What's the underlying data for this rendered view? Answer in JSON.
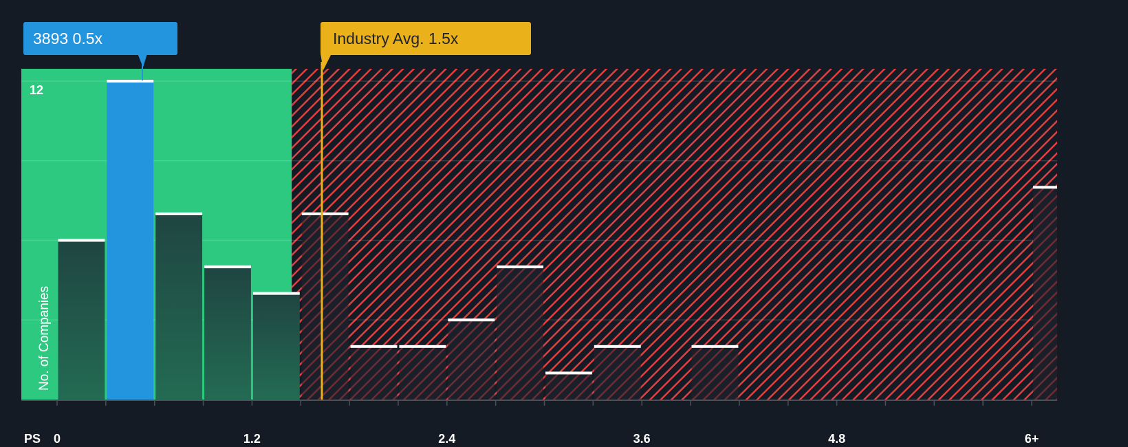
{
  "callouts": {
    "company": "3893 0.5x",
    "industry": "Industry Avg. 1.5x"
  },
  "axis": {
    "x_prefix": "PS",
    "y_title": "No. of Companies",
    "y_top_tick": "12"
  },
  "colors": {
    "background": "#151b24",
    "fair_zone": "#2ec981",
    "overvalued_stripe": "#e0403f",
    "company_bar": "#2394de",
    "industry_line": "#ebb11a",
    "bar_fill_green_zone": "#1f4a40",
    "bar_top": "#ffffff"
  },
  "chart_data": {
    "type": "bar",
    "title": "",
    "xlabel": "PS",
    "ylabel": "No. of Companies",
    "x_tick_labels": [
      "0",
      "1.2",
      "2.4",
      "3.6",
      "4.8",
      "6+"
    ],
    "x_tick_positions": [
      0,
      1.2,
      2.4,
      3.6,
      4.8,
      6.0
    ],
    "bin_width": 0.3,
    "bins_start": [
      0,
      0.3,
      0.6,
      0.9,
      1.2,
      1.5,
      1.8,
      2.1,
      2.4,
      2.7,
      3.0,
      3.3,
      3.6,
      3.9,
      4.2,
      4.5,
      4.8,
      5.1,
      5.4,
      5.7,
      "6+"
    ],
    "values": [
      6,
      12,
      7,
      5,
      4,
      7,
      2,
      2,
      3,
      5,
      1,
      2,
      0,
      2,
      0,
      0,
      0,
      0,
      0,
      0,
      8
    ],
    "highlight_bin_index": 1,
    "company": {
      "ticker": "3893",
      "value": 0.5
    },
    "industry_avg": 1.5,
    "fair_zone_max": 1.5,
    "ylim": [
      0,
      12.5
    ],
    "y_gridlines": [
      3,
      6,
      9,
      12
    ],
    "grid": true,
    "legend": "none"
  }
}
